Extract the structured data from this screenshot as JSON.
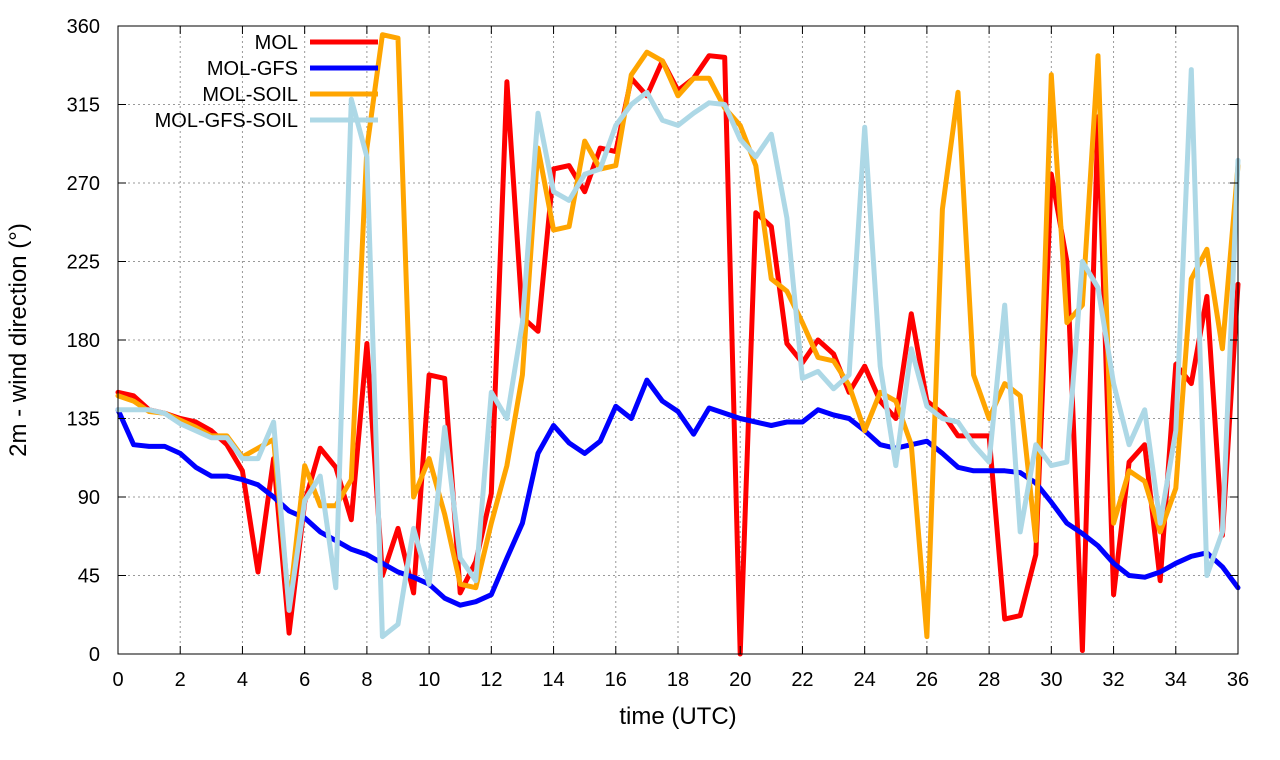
{
  "chart_data": {
    "type": "line",
    "title": "",
    "xlabel": "time (UTC)",
    "ylabel": "2m - wind direction (°)",
    "xlim": [
      0,
      36
    ],
    "ylim": [
      0,
      360
    ],
    "grid": true,
    "legend_position": "top-left",
    "x_ticks": [
      "0",
      "2",
      "4",
      "6",
      "8",
      "10",
      "12",
      "14",
      "16",
      "18",
      "20",
      "22",
      "24",
      "26",
      "28",
      "30",
      "32",
      "34",
      "36"
    ],
    "y_ticks": [
      "0",
      "45",
      "90",
      "135",
      "180",
      "225",
      "270",
      "315",
      "360"
    ],
    "x_tick_values": [
      0,
      2,
      4,
      6,
      8,
      10,
      12,
      14,
      16,
      18,
      20,
      22,
      24,
      26,
      28,
      30,
      32,
      34,
      36
    ],
    "y_tick_values": [
      0,
      45,
      90,
      135,
      180,
      225,
      270,
      315,
      360
    ],
    "x": [
      0,
      0.5,
      1,
      1.5,
      2,
      2.5,
      3,
      3.5,
      4,
      4.5,
      5,
      5.5,
      6,
      6.5,
      7,
      7.5,
      8,
      8.5,
      9,
      9.5,
      10,
      10.5,
      11,
      11.5,
      12,
      12.5,
      13,
      13.5,
      14,
      14.5,
      15,
      15.5,
      16,
      16.5,
      17,
      17.5,
      18,
      18.5,
      19,
      19.5,
      20,
      20.5,
      21,
      21.5,
      22,
      22.5,
      23,
      23.5,
      24,
      24.5,
      25,
      25.5,
      26,
      26.5,
      27,
      27.5,
      28,
      28.5,
      29,
      29.5,
      30,
      30.5,
      31,
      31.5,
      32,
      32.5,
      33,
      33.5,
      34,
      34.5,
      35,
      35.5,
      36
    ],
    "series": [
      {
        "name": "MOL",
        "color": "#ff0000",
        "values": [
          150,
          148,
          140,
          138,
          135,
          133,
          128,
          120,
          105,
          47,
          112,
          12,
          87,
          118,
          107,
          77,
          178,
          45,
          72,
          35,
          160,
          158,
          35,
          53,
          92,
          328,
          193,
          185,
          278,
          280,
          265,
          290,
          288,
          330,
          320,
          340,
          323,
          330,
          343,
          342,
          0,
          253,
          245,
          178,
          167,
          180,
          172,
          150,
          165,
          145,
          135,
          195,
          145,
          138,
          125,
          125,
          125,
          20,
          22,
          57,
          275,
          225,
          2,
          308,
          34,
          110,
          120,
          42,
          166,
          155,
          205,
          68,
          212
        ]
      },
      {
        "name": "MOL-GFS",
        "color": "#0000ff",
        "values": [
          140,
          120,
          119,
          119,
          115,
          107,
          102,
          102,
          100,
          97,
          90,
          82,
          78,
          70,
          65,
          60,
          57,
          52,
          47,
          44,
          40,
          32,
          28,
          30,
          34,
          55,
          75,
          115,
          131,
          121,
          115,
          122,
          142,
          135,
          157,
          145,
          139,
          126,
          141,
          138,
          135,
          133,
          131,
          133,
          133,
          140,
          137,
          135,
          128,
          120,
          118,
          120,
          122,
          115,
          107,
          105,
          105,
          105,
          104,
          98,
          87,
          75,
          69,
          62,
          52,
          45,
          44,
          47,
          52,
          56,
          58,
          50,
          38
        ]
      },
      {
        "name": "MOL-SOIL",
        "color": "#ffa500",
        "values": [
          148,
          145,
          139,
          138,
          134,
          130,
          125,
          125,
          113,
          118,
          123,
          27,
          108,
          85,
          85,
          100,
          290,
          355,
          353,
          90,
          112,
          80,
          40,
          38,
          75,
          108,
          160,
          290,
          243,
          245,
          294,
          278,
          280,
          332,
          345,
          340,
          320,
          330,
          330,
          313,
          303,
          280,
          215,
          208,
          190,
          170,
          168,
          154,
          128,
          150,
          145,
          120,
          10,
          255,
          322,
          160,
          135,
          155,
          148,
          65,
          332,
          190,
          200,
          343,
          75,
          105,
          99,
          70,
          95,
          215,
          232,
          175,
          280
        ]
      },
      {
        "name": "MOL-GFS-SOIL",
        "color": "#add8e6",
        "values": [
          140,
          140,
          140,
          138,
          132,
          128,
          124,
          124,
          112,
          112,
          133,
          25,
          88,
          102,
          38,
          318,
          285,
          10,
          17,
          72,
          40,
          130,
          55,
          42,
          150,
          135,
          190,
          310,
          265,
          260,
          275,
          278,
          303,
          315,
          322,
          306,
          303,
          310,
          316,
          315,
          295,
          285,
          298,
          250,
          158,
          162,
          152,
          160,
          302,
          165,
          108,
          175,
          142,
          135,
          133,
          120,
          110,
          200,
          70,
          120,
          108,
          110,
          225,
          210,
          155,
          120,
          140,
          75,
          128,
          335,
          45,
          70,
          283
        ]
      }
    ]
  }
}
